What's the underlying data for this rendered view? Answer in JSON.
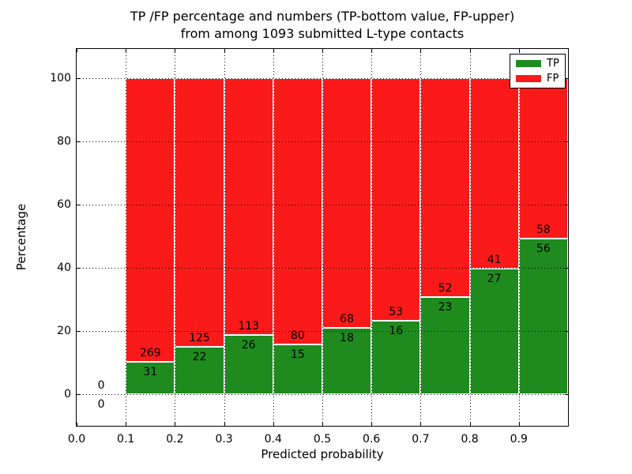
{
  "title_line1": "TP /FP percentage and numbers (TP-bottom value, FP-upper)",
  "title_line2": "from among 1093 submitted L-type contacts",
  "chart_data": {
    "type": "bar",
    "stacked": true,
    "normalized_to_percent": true,
    "total_contacts": 1093,
    "xlabel": "Predicted probability",
    "ylabel": "Percentage",
    "x_bin_start": [
      0.0,
      0.1,
      0.2,
      0.3,
      0.4,
      0.5,
      0.6,
      0.7,
      0.8,
      0.9
    ],
    "bin_width": 0.1,
    "series": [
      {
        "name": "TP",
        "color": "#1f8b1f",
        "counts": [
          0,
          31,
          22,
          26,
          15,
          18,
          16,
          23,
          27,
          56
        ]
      },
      {
        "name": "FP",
        "color": "#fb1a1a",
        "counts": [
          0,
          269,
          125,
          113,
          80,
          68,
          53,
          52,
          41,
          58
        ]
      }
    ],
    "tp_percent": [
      0,
      10.33,
      14.97,
      18.71,
      15.79,
      20.93,
      23.19,
      30.67,
      39.71,
      49.12
    ],
    "xtick_values": [
      0.0,
      0.1,
      0.2,
      0.3,
      0.4,
      0.5,
      0.6,
      0.7,
      0.8,
      0.9
    ],
    "xtick_labels": [
      "0.0",
      "0.1",
      "0.2",
      "0.3",
      "0.4",
      "0.5",
      "0.6",
      "0.7",
      "0.8",
      "0.9"
    ],
    "ytick_values": [
      0,
      20,
      40,
      60,
      80,
      100
    ],
    "ytick_labels": [
      "0",
      "20",
      "40",
      "60",
      "80",
      "100"
    ],
    "xlim": [
      0.0,
      1.0
    ],
    "ylim": [
      -10.0,
      109.2
    ],
    "grid": "dotted",
    "grid_color": "#000000",
    "bar_edge_color": "#ffffff",
    "legend_position": "upper right"
  }
}
